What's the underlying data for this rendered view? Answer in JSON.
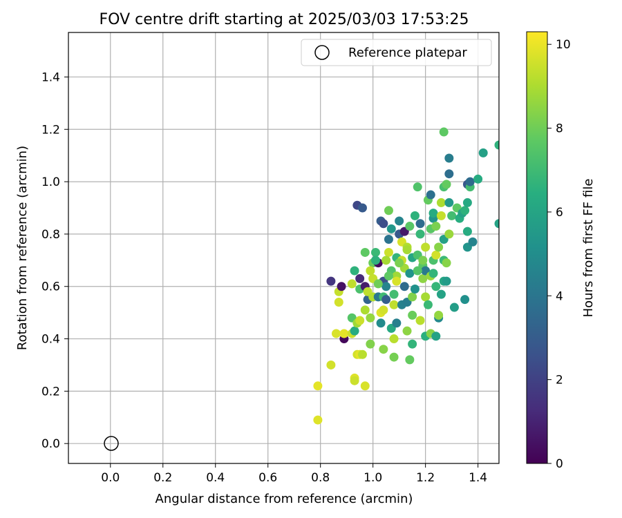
{
  "chart_data": {
    "type": "scatter",
    "title": "FOV centre drift starting at 2025/03/03 17:53:25",
    "xlabel": "Angular distance from reference (arcmin)",
    "ylabel": "Rotation from reference (arcmin)",
    "xlim": [
      -0.16,
      1.48
    ],
    "ylim": [
      -0.076,
      1.57
    ],
    "xticks": [
      "0.0",
      "0.2",
      "0.4",
      "0.6",
      "0.8",
      "1.0",
      "1.2",
      "1.4"
    ],
    "yticks": [
      "0.0",
      "0.2",
      "0.4",
      "0.6",
      "0.8",
      "1.0",
      "1.2",
      "1.4"
    ],
    "grid": true,
    "legend": {
      "placement": "top-right",
      "entries": [
        {
          "label": "Reference platepar",
          "marker": "open-circle"
        }
      ]
    },
    "reference_point": {
      "x": 0.0,
      "y": 0.0
    },
    "colorbar": {
      "label": "Hours from first FF file",
      "colormap": "viridis",
      "range": [
        0,
        10.3
      ],
      "ticks": [
        "0",
        "2",
        "4",
        "6",
        "8",
        "10"
      ]
    },
    "points": [
      [
        0.79,
        0.09,
        9.8
      ],
      [
        0.79,
        0.22,
        9.9
      ],
      [
        0.84,
        0.3,
        9.6
      ],
      [
        0.86,
        0.42,
        9.7
      ],
      [
        0.87,
        0.54,
        9.6
      ],
      [
        0.87,
        0.58,
        9.4
      ],
      [
        0.89,
        0.4,
        0.2
      ],
      [
        0.89,
        0.42,
        9.9
      ],
      [
        0.88,
        0.6,
        0.5
      ],
      [
        0.84,
        0.62,
        1.6
      ],
      [
        0.92,
        0.42,
        9.5
      ],
      [
        0.93,
        0.25,
        9.8
      ],
      [
        0.93,
        0.24,
        9.5
      ],
      [
        0.94,
        0.34,
        9.6
      ],
      [
        0.95,
        0.34,
        9.9
      ],
      [
        0.96,
        0.34,
        9.2
      ],
      [
        0.97,
        0.22,
        9.7
      ],
      [
        0.92,
        0.48,
        7.5
      ],
      [
        0.93,
        0.43,
        6.3
      ],
      [
        0.94,
        0.46,
        8.8
      ],
      [
        0.95,
        0.47,
        9.5
      ],
      [
        0.92,
        0.61,
        9.3
      ],
      [
        0.93,
        0.66,
        6.6
      ],
      [
        0.95,
        0.63,
        1.2
      ],
      [
        0.95,
        0.59,
        7.3
      ],
      [
        0.94,
        0.91,
        2.2
      ],
      [
        0.96,
        0.9,
        2.9
      ],
      [
        0.97,
        0.51,
        9.0
      ],
      [
        0.97,
        0.6,
        0.8
      ],
      [
        0.98,
        0.55,
        3.3
      ],
      [
        0.98,
        0.58,
        9.3
      ],
      [
        0.97,
        0.73,
        7.7
      ],
      [
        0.99,
        0.38,
        8.3
      ],
      [
        0.99,
        0.48,
        8.6
      ],
      [
        1.0,
        0.56,
        9.1
      ],
      [
        1.0,
        0.63,
        9.4
      ],
      [
        1.0,
        0.69,
        7.9
      ],
      [
        1.01,
        0.73,
        6.9
      ],
      [
        1.02,
        0.69,
        0.3
      ],
      [
        1.02,
        0.56,
        4.1
      ],
      [
        1.03,
        0.46,
        4.9
      ],
      [
        1.03,
        0.5,
        9.8
      ],
      [
        1.04,
        0.36,
        8.4
      ],
      [
        1.04,
        0.51,
        9.6
      ],
      [
        1.04,
        0.56,
        7.0
      ],
      [
        1.04,
        0.62,
        2.5
      ],
      [
        1.05,
        0.55,
        3.1
      ],
      [
        1.05,
        0.6,
        4.6
      ],
      [
        1.03,
        0.85,
        3.0
      ],
      [
        1.04,
        0.84,
        2.4
      ],
      [
        1.06,
        0.89,
        8.0
      ],
      [
        1.06,
        0.78,
        3.9
      ],
      [
        1.06,
        0.73,
        9.5
      ],
      [
        1.07,
        0.66,
        7.4
      ],
      [
        1.07,
        0.82,
        5.4
      ],
      [
        1.07,
        0.44,
        6.2
      ],
      [
        1.08,
        0.33,
        8.1
      ],
      [
        1.08,
        0.4,
        9.2
      ],
      [
        1.08,
        0.53,
        9.3
      ],
      [
        1.08,
        0.57,
        7.1
      ],
      [
        1.09,
        0.64,
        8.8
      ],
      [
        1.09,
        0.46,
        4.4
      ],
      [
        1.09,
        0.71,
        6.7
      ],
      [
        1.1,
        0.85,
        4.6
      ],
      [
        1.1,
        0.8,
        2.8
      ],
      [
        1.11,
        0.53,
        4.5
      ],
      [
        1.11,
        0.7,
        9.4
      ],
      [
        1.11,
        0.77,
        9.7
      ],
      [
        1.12,
        0.81,
        0.7
      ],
      [
        1.12,
        0.6,
        3.6
      ],
      [
        1.12,
        0.67,
        8.8
      ],
      [
        1.13,
        0.43,
        8.5
      ],
      [
        1.13,
        0.54,
        4.3
      ],
      [
        1.13,
        0.75,
        9.1
      ],
      [
        1.14,
        0.32,
        7.8
      ],
      [
        1.14,
        0.65,
        5.3
      ],
      [
        1.14,
        0.83,
        7.6
      ],
      [
        1.15,
        0.38,
        6.7
      ],
      [
        1.15,
        0.49,
        7.9
      ],
      [
        1.15,
        0.56,
        8.3
      ],
      [
        1.15,
        0.71,
        6.1
      ],
      [
        1.16,
        0.87,
        6.6
      ],
      [
        1.16,
        0.59,
        5.2
      ],
      [
        1.17,
        0.72,
        7.3
      ],
      [
        1.17,
        0.98,
        7.4
      ],
      [
        1.18,
        0.8,
        6.8
      ],
      [
        1.18,
        0.47,
        9.2
      ],
      [
        1.18,
        0.84,
        3.6
      ],
      [
        1.19,
        0.63,
        8.5
      ],
      [
        1.19,
        0.68,
        7.6
      ],
      [
        1.2,
        0.41,
        6.5
      ],
      [
        1.2,
        0.56,
        8.9
      ],
      [
        1.2,
        0.66,
        4.2
      ],
      [
        1.2,
        0.75,
        9.3
      ],
      [
        1.21,
        0.93,
        7.8
      ],
      [
        1.21,
        0.53,
        6.9
      ],
      [
        1.22,
        0.42,
        8.4
      ],
      [
        1.22,
        0.64,
        8.7
      ],
      [
        1.22,
        0.82,
        7.6
      ],
      [
        1.22,
        0.95,
        3.8
      ],
      [
        1.23,
        0.86,
        5.3
      ],
      [
        1.23,
        0.7,
        7.3
      ],
      [
        1.23,
        0.88,
        6.3
      ],
      [
        1.24,
        0.72,
        9.6
      ],
      [
        1.24,
        0.41,
        5.9
      ],
      [
        1.24,
        0.6,
        6.8
      ],
      [
        1.24,
        0.83,
        8.2
      ],
      [
        1.25,
        0.48,
        4.8
      ],
      [
        1.25,
        0.49,
        8.6
      ],
      [
        1.25,
        0.75,
        8.4
      ],
      [
        1.26,
        0.92,
        9.0
      ],
      [
        1.26,
        0.87,
        9.4
      ],
      [
        1.26,
        0.57,
        5.9
      ],
      [
        1.27,
        0.62,
        6.1
      ],
      [
        1.27,
        0.98,
        7.2
      ],
      [
        1.27,
        0.7,
        6.9
      ],
      [
        1.27,
        0.78,
        5.8
      ],
      [
        1.27,
        1.19,
        7.7
      ],
      [
        1.28,
        0.99,
        7.8
      ],
      [
        1.28,
        0.69,
        8.4
      ],
      [
        1.28,
        0.62,
        5.6
      ],
      [
        1.29,
        0.8,
        8.7
      ],
      [
        1.29,
        0.92,
        5.5
      ],
      [
        1.29,
        1.09,
        4.3
      ],
      [
        1.29,
        1.03,
        3.7
      ],
      [
        1.3,
        0.87,
        7.1
      ],
      [
        1.31,
        0.52,
        5.7
      ],
      [
        1.32,
        0.9,
        7.7
      ],
      [
        1.33,
        0.86,
        6.4
      ],
      [
        1.34,
        0.88,
        5.9
      ],
      [
        1.35,
        0.89,
        6.6
      ],
      [
        1.35,
        0.55,
        5.1
      ],
      [
        1.36,
        0.99,
        2.8
      ],
      [
        1.36,
        0.92,
        6.2
      ],
      [
        1.36,
        0.81,
        6.3
      ],
      [
        1.36,
        0.75,
        5.3
      ],
      [
        1.37,
        0.98,
        7.1
      ],
      [
        1.37,
        1.0,
        3.6
      ],
      [
        1.38,
        0.77,
        4.6
      ],
      [
        1.4,
        1.01,
        6.3
      ],
      [
        1.42,
        1.11,
        5.8
      ],
      [
        1.48,
        1.14,
        6.6
      ],
      [
        1.48,
        0.84,
        5.9
      ],
      [
        1.01,
        0.7,
        6.6
      ],
      [
        1.05,
        0.7,
        8.9
      ],
      [
        1.06,
        0.64,
        7.7
      ],
      [
        1.09,
        0.62,
        9.7
      ],
      [
        1.1,
        0.69,
        8.2
      ],
      [
        1.13,
        0.74,
        8.9
      ],
      [
        1.17,
        0.66,
        7.5
      ],
      [
        1.19,
        0.7,
        8.2
      ],
      [
        1.23,
        0.65,
        6.7
      ],
      [
        1.02,
        0.61,
        8.0
      ],
      [
        0.99,
        0.66,
        9.3
      ]
    ]
  }
}
